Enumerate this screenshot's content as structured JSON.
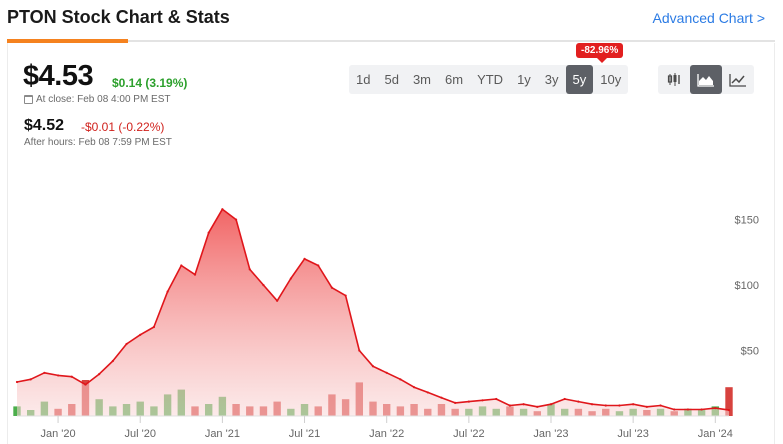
{
  "header": {
    "title": "PTON Stock Chart & Stats",
    "advanced_link": "Advanced Chart >"
  },
  "quote": {
    "price": "$4.53",
    "change": "$0.14 (3.19%)",
    "close_label": "At close: Feb 08 4:00 PM EST",
    "after_hours_price": "$4.52",
    "after_hours_change": "-$0.01 (-0.22%)",
    "after_hours_label": "After hours: Feb 08 7:59 PM EST"
  },
  "ranges": {
    "items": [
      "1d",
      "5d",
      "3m",
      "6m",
      "YTD",
      "1y",
      "3y",
      "5y",
      "10y"
    ],
    "selected": "5y",
    "performance_badge": "-82.96%"
  },
  "chart_types": {
    "items": [
      "candlestick-icon",
      "area-chart-icon",
      "line-chart-icon"
    ],
    "selected": "area-chart-icon"
  },
  "colors": {
    "accent": "#f5821f",
    "link": "#2b7be4",
    "up": "#2ca02c",
    "down": "#d0211c",
    "line": "#e0161b",
    "badge": "#e21f1f"
  },
  "chart_data": {
    "type": "area",
    "x_ticks": [
      "Jan '20",
      "Jul '20",
      "Jan '21",
      "Jul '21",
      "Jan '22",
      "Jul '22",
      "Jan '23",
      "Jul '23",
      "Jan '24"
    ],
    "y_ticks": [
      "$150",
      "$100",
      "$50"
    ],
    "ylim": [
      0,
      165
    ],
    "x": [
      "2019-10",
      "2019-11",
      "2019-12",
      "2020-01",
      "2020-02",
      "2020-03",
      "2020-04",
      "2020-05",
      "2020-06",
      "2020-07",
      "2020-08",
      "2020-09",
      "2020-10",
      "2020-11",
      "2020-12",
      "2021-01",
      "2021-02",
      "2021-03",
      "2021-04",
      "2021-05",
      "2021-06",
      "2021-07",
      "2021-08",
      "2021-09",
      "2021-10",
      "2021-11",
      "2021-12",
      "2022-01",
      "2022-02",
      "2022-03",
      "2022-04",
      "2022-05",
      "2022-06",
      "2022-07",
      "2022-08",
      "2022-09",
      "2022-10",
      "2022-11",
      "2022-12",
      "2023-01",
      "2023-02",
      "2023-03",
      "2023-04",
      "2023-05",
      "2023-06",
      "2023-07",
      "2023-08",
      "2023-09",
      "2023-10",
      "2023-11",
      "2023-12",
      "2024-01",
      "2024-02"
    ],
    "values": [
      26,
      28,
      33,
      31,
      30,
      24,
      32,
      42,
      55,
      62,
      68,
      95,
      115,
      108,
      140,
      158,
      150,
      112,
      100,
      88,
      105,
      120,
      115,
      98,
      92,
      50,
      38,
      33,
      28,
      22,
      18,
      14,
      10,
      11,
      12,
      13,
      8,
      9,
      7,
      9,
      13,
      11,
      9,
      8,
      8,
      9,
      7,
      8,
      5,
      5,
      5,
      6,
      4.5
    ],
    "volume": [
      8,
      5,
      12,
      6,
      10,
      30,
      14,
      8,
      10,
      12,
      8,
      18,
      22,
      8,
      10,
      16,
      10,
      8,
      8,
      12,
      6,
      10,
      8,
      18,
      14,
      28,
      12,
      10,
      8,
      10,
      6,
      10,
      6,
      6,
      8,
      6,
      8,
      6,
      4,
      10,
      6,
      6,
      4,
      6,
      4,
      6,
      5,
      6,
      4,
      6,
      5,
      8,
      24
    ],
    "grid": false
  }
}
